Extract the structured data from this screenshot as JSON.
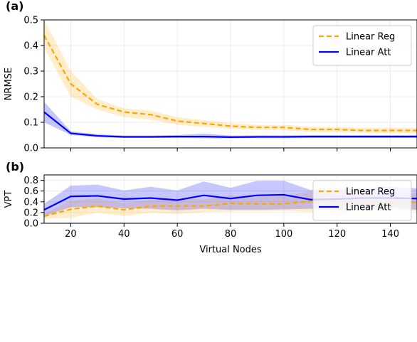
{
  "chart_data": [
    {
      "type": "line",
      "panel_label": "(a)",
      "ylabel": "NRMSE",
      "xlabel": "",
      "xlim": [
        10,
        150
      ],
      "ylim": [
        0,
        0.5
      ],
      "xticks": [
        20,
        40,
        60,
        80,
        100,
        120,
        140
      ],
      "yticks": [
        0.0,
        0.1,
        0.2,
        0.3,
        0.4,
        0.5
      ],
      "ytick_labels": [
        "0.0",
        "0.1",
        "0.2",
        "0.3",
        "0.4",
        "0.5"
      ],
      "show_x_tick_labels": false,
      "grid": true,
      "legend_position": "top-right",
      "x": [
        10,
        20,
        30,
        40,
        50,
        60,
        70,
        80,
        90,
        100,
        110,
        120,
        130,
        140,
        150
      ],
      "series": [
        {
          "name": "Linear Reg",
          "color": "#FFA500",
          "linestyle": "dashed",
          "values": [
            0.44,
            0.25,
            0.17,
            0.14,
            0.13,
            0.105,
            0.095,
            0.085,
            0.08,
            0.08,
            0.072,
            0.072,
            0.068,
            0.068,
            0.068
          ],
          "lower": [
            0.39,
            0.2,
            0.15,
            0.12,
            0.11,
            0.09,
            0.082,
            0.075,
            0.07,
            0.07,
            0.062,
            0.062,
            0.06,
            0.058,
            0.058
          ],
          "upper": [
            0.5,
            0.3,
            0.19,
            0.155,
            0.145,
            0.12,
            0.108,
            0.097,
            0.09,
            0.09,
            0.083,
            0.082,
            0.078,
            0.078,
            0.078
          ]
        },
        {
          "name": "Linear Att",
          "color": "#0000FF",
          "linestyle": "solid",
          "values": [
            0.14,
            0.057,
            0.047,
            0.043,
            0.043,
            0.044,
            0.044,
            0.042,
            0.043,
            0.043,
            0.044,
            0.044,
            0.044,
            0.044,
            0.044
          ],
          "lower": [
            0.1,
            0.05,
            0.042,
            0.039,
            0.039,
            0.039,
            0.037,
            0.037,
            0.038,
            0.038,
            0.039,
            0.039,
            0.039,
            0.039,
            0.039
          ],
          "upper": [
            0.18,
            0.065,
            0.053,
            0.048,
            0.048,
            0.05,
            0.056,
            0.048,
            0.049,
            0.049,
            0.05,
            0.05,
            0.05,
            0.05,
            0.05
          ]
        }
      ]
    },
    {
      "type": "line",
      "panel_label": "(b)",
      "ylabel": "VPT",
      "xlabel": "Virtual Nodes",
      "xlim": [
        10,
        150
      ],
      "ylim": [
        0,
        0.9
      ],
      "xticks": [
        20,
        40,
        60,
        80,
        100,
        120,
        140
      ],
      "yticks": [
        0.0,
        0.2,
        0.4,
        0.6,
        0.8
      ],
      "ytick_labels": [
        "0.0",
        "0.2",
        "0.4",
        "0.6",
        "0.8"
      ],
      "show_x_tick_labels": true,
      "grid": true,
      "legend_position": "top-right",
      "x": [
        10,
        20,
        30,
        40,
        50,
        60,
        70,
        80,
        90,
        100,
        110,
        120,
        130,
        140,
        150
      ],
      "series": [
        {
          "name": "Linear Reg",
          "color": "#FFA500",
          "linestyle": "dashed",
          "values": [
            0.13,
            0.26,
            0.32,
            0.25,
            0.32,
            0.32,
            0.32,
            0.37,
            0.36,
            0.36,
            0.41,
            0.41,
            0.39,
            0.39,
            0.39
          ],
          "lower": [
            0.09,
            0.1,
            0.2,
            0.13,
            0.2,
            0.17,
            0.21,
            0.22,
            0.22,
            0.23,
            0.21,
            0.2,
            0.21,
            0.26,
            0.22
          ],
          "upper": [
            0.18,
            0.42,
            0.46,
            0.37,
            0.44,
            0.47,
            0.44,
            0.52,
            0.49,
            0.5,
            0.59,
            0.62,
            0.58,
            0.53,
            0.57
          ]
        },
        {
          "name": "Linear Att",
          "color": "#0000FF",
          "linestyle": "solid",
          "values": [
            0.25,
            0.5,
            0.51,
            0.45,
            0.47,
            0.43,
            0.52,
            0.46,
            0.52,
            0.53,
            0.44,
            0.45,
            0.47,
            0.47,
            0.46
          ],
          "lower": [
            0.13,
            0.3,
            0.3,
            0.28,
            0.27,
            0.24,
            0.27,
            0.25,
            0.25,
            0.26,
            0.27,
            0.26,
            0.24,
            0.3,
            0.25
          ],
          "upper": [
            0.36,
            0.7,
            0.72,
            0.61,
            0.68,
            0.61,
            0.78,
            0.66,
            0.79,
            0.79,
            0.62,
            0.63,
            0.65,
            0.68,
            0.65
          ]
        }
      ]
    }
  ]
}
